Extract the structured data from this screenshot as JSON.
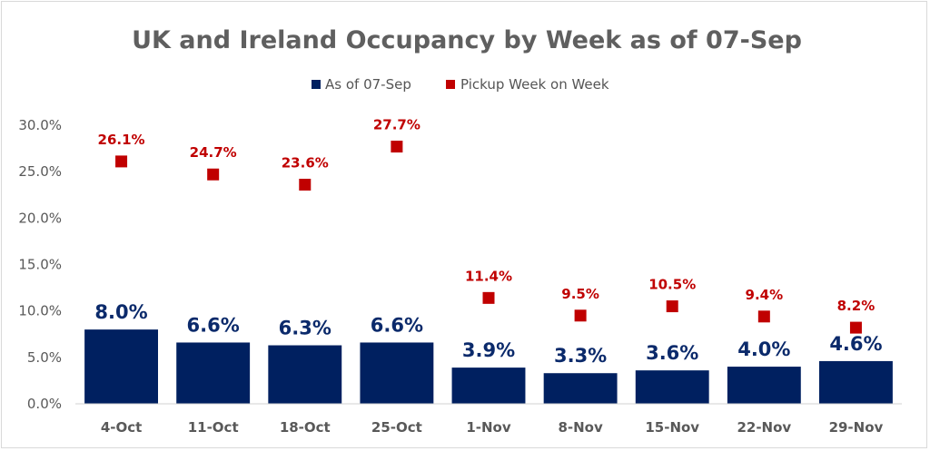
{
  "chart_data": {
    "type": "bar",
    "title": "UK and Ireland Occupancy by Week as of 07-Sep",
    "categories": [
      "4-Oct",
      "11-Oct",
      "18-Oct",
      "25-Oct",
      "1-Nov",
      "8-Nov",
      "15-Nov",
      "22-Nov",
      "29-Nov"
    ],
    "ylim": [
      0,
      0.3
    ],
    "yticks": [
      "0.0%",
      "5.0%",
      "10.0%",
      "15.0%",
      "20.0%",
      "25.0%",
      "30.0%"
    ],
    "ytick_values": [
      0,
      0.05,
      0.1,
      0.15,
      0.2,
      0.25,
      0.3
    ],
    "legend_position": "top-center",
    "grid": false,
    "series": [
      {
        "name": "As of 07-Sep",
        "type": "bar",
        "color": "#002060",
        "values": [
          0.08,
          0.066,
          0.063,
          0.066,
          0.039,
          0.033,
          0.036,
          0.04,
          0.046
        ],
        "labels": [
          "8.0%",
          "6.6%",
          "6.3%",
          "6.6%",
          "3.9%",
          "3.3%",
          "3.6%",
          "4.0%",
          "4.6%"
        ]
      },
      {
        "name": "Pickup Week on Week",
        "type": "scatter",
        "color": "#c00000",
        "values": [
          0.261,
          0.247,
          0.236,
          0.277,
          0.114,
          0.095,
          0.105,
          0.094,
          0.082
        ],
        "labels": [
          "26.1%",
          "24.7%",
          "23.6%",
          "27.7%",
          "11.4%",
          "9.5%",
          "10.5%",
          "9.4%",
          "8.2%"
        ]
      }
    ]
  }
}
